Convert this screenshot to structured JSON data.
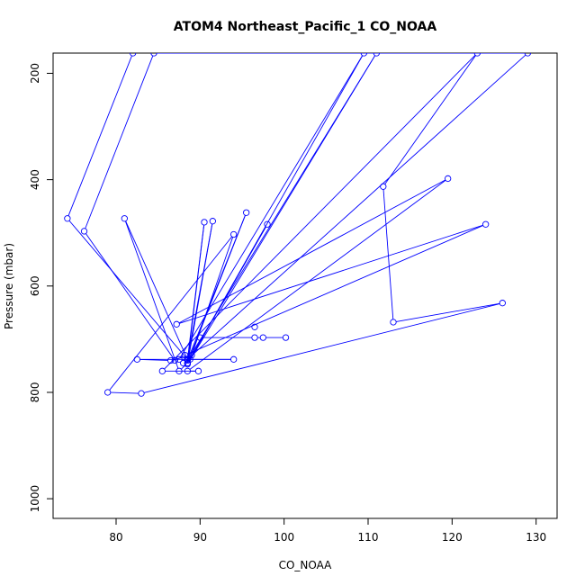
{
  "chart_data": {
    "type": "line",
    "title": "ATOM4 Northeast_Pacific_1 CO_NOAA",
    "xlabel": "CO_NOAA",
    "ylabel": "Pressure (mbar)",
    "xlim": [
      72.5,
      132.5
    ],
    "ylim": [
      1037,
      162
    ],
    "y_reversed": true,
    "x_ticks": [
      80,
      90,
      100,
      110,
      120,
      130
    ],
    "y_ticks": [
      200,
      400,
      600,
      800,
      1000
    ],
    "grid": false,
    "legend": "none",
    "color": "#0000ff",
    "series": [
      {
        "points": [
          [
            82,
            162
          ],
          [
            74.2,
            473
          ],
          [
            88.5,
            738
          ],
          [
            90.5,
            480
          ],
          [
            88.5,
            745
          ],
          [
            87.5,
            760
          ],
          [
            81,
            473
          ],
          [
            88.5,
            738
          ],
          [
            91.5,
            478
          ],
          [
            88.5,
            747
          ],
          [
            111,
            162
          ],
          [
            88.5,
            740
          ],
          [
            95.5,
            462
          ],
          [
            88.5,
            745
          ],
          [
            98,
            484
          ],
          [
            88.8,
            738
          ],
          [
            109.5,
            162
          ],
          [
            87.5,
            738
          ],
          [
            94,
            738
          ],
          [
            82.5,
            738
          ],
          [
            86.5,
            740
          ],
          [
            89,
            730
          ],
          [
            94,
            503
          ],
          [
            79,
            800
          ],
          [
            83,
            802
          ],
          [
            126,
            632
          ],
          [
            113,
            668
          ],
          [
            111.8,
            413
          ],
          [
            123,
            162
          ],
          [
            85.5,
            760
          ],
          [
            89.8,
            760
          ],
          [
            88.5,
            760
          ],
          [
            119.5,
            398
          ],
          [
            87.2,
            672
          ],
          [
            124,
            484
          ],
          [
            88.2,
            730
          ],
          [
            87,
            740
          ],
          [
            76.2,
            497
          ],
          [
            84.5,
            162
          ],
          [
            129,
            162
          ],
          [
            88,
            745
          ]
        ]
      },
      {
        "points": [
          [
            96.5,
            677
          ]
        ]
      },
      {
        "points": [
          [
            90,
            697
          ],
          [
            96.5,
            697
          ],
          [
            97.5,
            697
          ],
          [
            100.2,
            697
          ]
        ]
      }
    ]
  }
}
